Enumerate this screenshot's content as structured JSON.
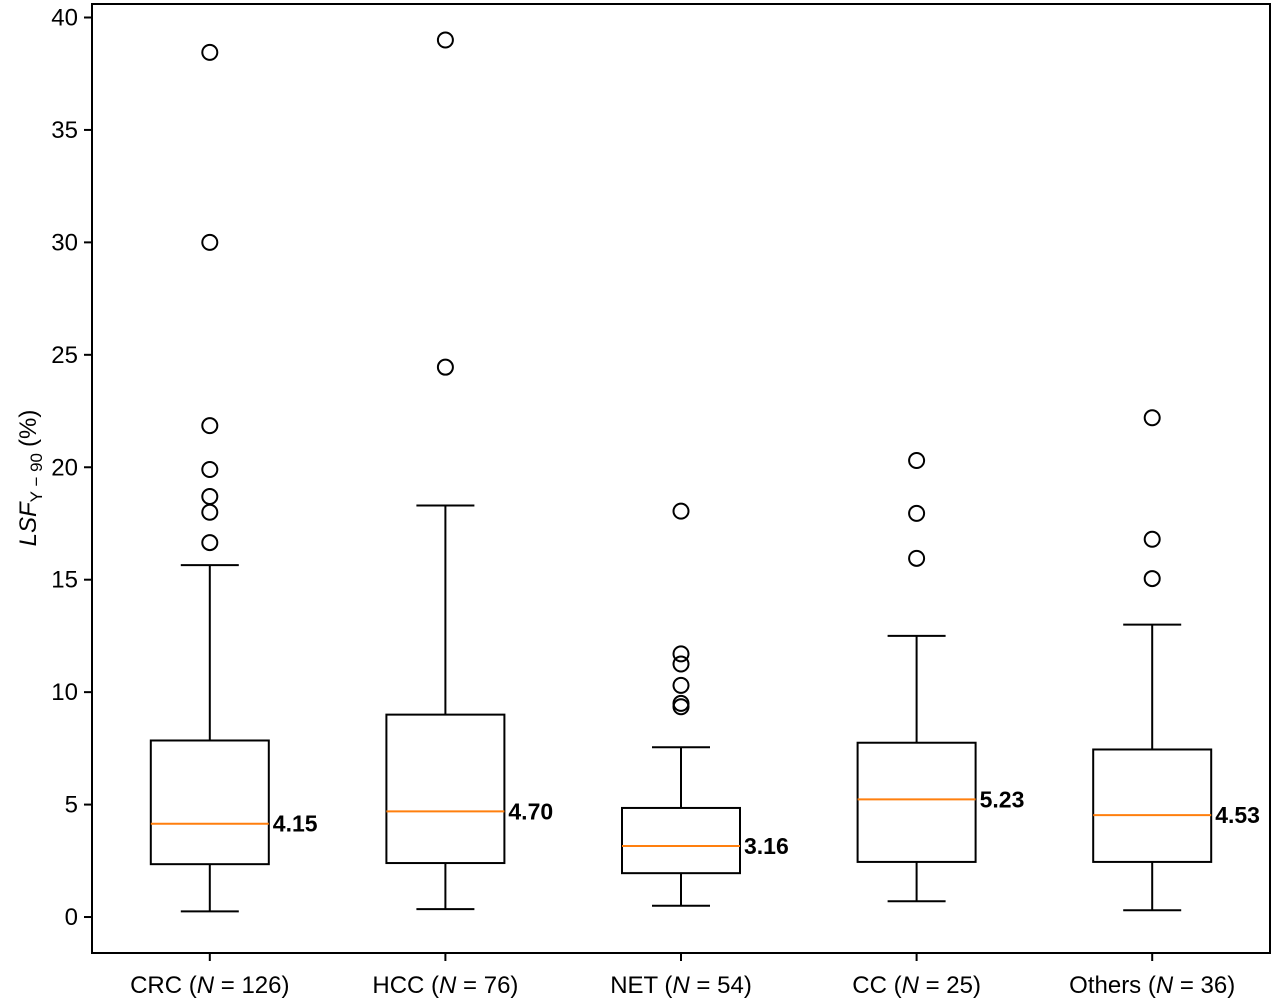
{
  "chart_data": {
    "type": "box",
    "title": "",
    "xlabel": "",
    "ylabel": {
      "text": "(%)",
      "italic": "LSF",
      "subscript": "Y − 90"
    },
    "ylim": [
      -1.6,
      40.6
    ],
    "yticks": [
      0,
      5,
      10,
      15,
      20,
      25,
      30,
      35,
      40
    ],
    "grid": false,
    "colors": {
      "box": "#000000",
      "median": "#ff7f0e"
    },
    "categories": [
      {
        "prefix": "CRC (",
        "n_symbol": "N",
        "suffix": " = 126)"
      },
      {
        "prefix": "HCC (",
        "n_symbol": "N",
        "suffix": " = 76)"
      },
      {
        "prefix": "NET (",
        "n_symbol": "N",
        "suffix": " = 54)"
      },
      {
        "prefix": "CC (",
        "n_symbol": "N",
        "suffix": " = 25)"
      },
      {
        "prefix": "Others (",
        "n_symbol": "N",
        "suffix": " = 36)"
      }
    ],
    "boxes": [
      {
        "whisker_low": 0.25,
        "q1": 2.35,
        "median": 4.15,
        "q3": 7.85,
        "whisker_high": 15.65,
        "outliers": [
          16.65,
          18.0,
          18.7,
          19.9,
          21.85,
          30.0,
          38.45
        ],
        "median_label": "4.15"
      },
      {
        "whisker_low": 0.35,
        "q1": 2.4,
        "median": 4.7,
        "q3": 9.0,
        "whisker_high": 18.3,
        "outliers": [
          24.45,
          39.0
        ],
        "median_label": "4.70"
      },
      {
        "whisker_low": 0.5,
        "q1": 1.95,
        "median": 3.16,
        "q3": 4.85,
        "whisker_high": 7.55,
        "outliers": [
          9.35,
          9.5,
          10.3,
          11.25,
          11.7,
          18.05
        ],
        "median_label": "3.16"
      },
      {
        "whisker_low": 0.7,
        "q1": 2.45,
        "median": 5.23,
        "q3": 7.75,
        "whisker_high": 12.5,
        "outliers": [
          15.95,
          17.95,
          20.3
        ],
        "median_label": "5.23"
      },
      {
        "whisker_low": 0.3,
        "q1": 2.45,
        "median": 4.53,
        "q3": 7.45,
        "whisker_high": 13.0,
        "outliers": [
          15.05,
          16.8,
          22.2
        ],
        "median_label": "4.53"
      }
    ]
  }
}
